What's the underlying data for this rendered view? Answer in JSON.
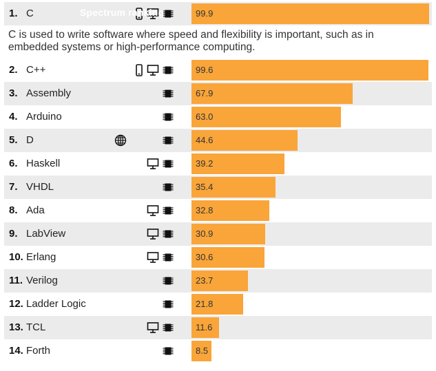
{
  "chart_data": {
    "type": "bar",
    "orientation": "horizontal",
    "title": "Spectrum ranking",
    "categories": [
      "C",
      "C++",
      "Assembly",
      "Arduino",
      "D",
      "Haskell",
      "VHDL",
      "Ada",
      "LabView",
      "Erlang",
      "Verilog",
      "Ladder Logic",
      "TCL",
      "Forth"
    ],
    "ranks": [
      "1.",
      "2.",
      "3.",
      "4.",
      "5.",
      "6.",
      "7.",
      "8.",
      "9.",
      "10.",
      "11.",
      "12.",
      "13.",
      "14."
    ],
    "values": [
      99.9,
      99.6,
      67.9,
      63.0,
      44.6,
      39.2,
      35.4,
      32.8,
      30.9,
      30.6,
      23.7,
      21.8,
      11.6,
      8.5
    ],
    "value_labels": [
      "99.9",
      "99.6",
      "67.9",
      "63.0",
      "44.6",
      "39.2",
      "35.4",
      "32.8",
      "30.9",
      "30.6",
      "23.7",
      "21.8",
      "11.6",
      "8.5"
    ],
    "platforms": [
      [
        "mobile-icon",
        "desktop-icon",
        "embedded-icon"
      ],
      [
        "mobile-icon",
        "desktop-icon",
        "embedded-icon"
      ],
      [
        "embedded-icon"
      ],
      [
        "embedded-icon"
      ],
      [
        "web-icon",
        "embedded-icon"
      ],
      [
        "desktop-icon",
        "embedded-icon"
      ],
      [
        "embedded-icon"
      ],
      [
        "desktop-icon",
        "embedded-icon"
      ],
      [
        "desktop-icon",
        "embedded-icon"
      ],
      [
        "desktop-icon",
        "embedded-icon"
      ],
      [
        "embedded-icon"
      ],
      [
        "embedded-icon"
      ],
      [
        "desktop-icon",
        "embedded-icon"
      ],
      [
        "embedded-icon"
      ]
    ],
    "xlim": [
      0,
      100
    ],
    "grid": false,
    "expanded_description": "C is used to write software where speed and flexibility is important, such as in embedded systems or high-performance computing.",
    "colors": {
      "bar": "#f9a53a",
      "row_alt": "#ebebeb",
      "icon": "#111111"
    }
  }
}
